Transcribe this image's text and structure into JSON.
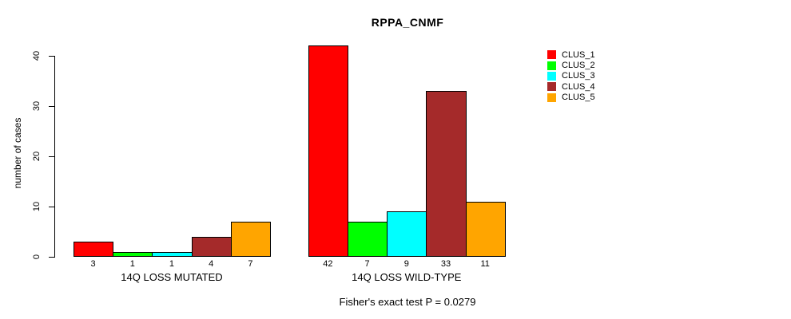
{
  "title": "RPPA_CNMF",
  "y_axis": {
    "label": "number of cases",
    "ticks": [
      0,
      10,
      20,
      30,
      40
    ]
  },
  "footer": "Fisher's exact test P = 0.0279",
  "legend": {
    "items": [
      {
        "label": "CLUS_1",
        "color": "#FF0000"
      },
      {
        "label": "CLUS_2",
        "color": "#00FF00"
      },
      {
        "label": "CLUS_3",
        "color": "#00FFFF"
      },
      {
        "label": "CLUS_4",
        "color": "#A52A2A"
      },
      {
        "label": "CLUS_5",
        "color": "#FFA500"
      }
    ]
  },
  "chart_data": {
    "type": "bar",
    "title": "RPPA_CNMF",
    "ylabel": "number of cases",
    "ylim": [
      0,
      42
    ],
    "yticks": [
      0,
      10,
      20,
      30,
      40
    ],
    "grid": false,
    "legend_position": "right-outside",
    "categories": [
      "CLUS_1",
      "CLUS_2",
      "CLUS_3",
      "CLUS_4",
      "CLUS_5"
    ],
    "series_colors": [
      "#FF0000",
      "#00FF00",
      "#00FFFF",
      "#A52A2A",
      "#FFA500"
    ],
    "groups": [
      {
        "label": "14Q LOSS MUTATED",
        "values": [
          3,
          1,
          1,
          4,
          7
        ]
      },
      {
        "label": "14Q LOSS WILD-TYPE",
        "values": [
          42,
          7,
          9,
          33,
          11
        ]
      }
    ],
    "bar_value_labels_shown": true,
    "annotation": "Fisher's exact test P = 0.0279"
  }
}
